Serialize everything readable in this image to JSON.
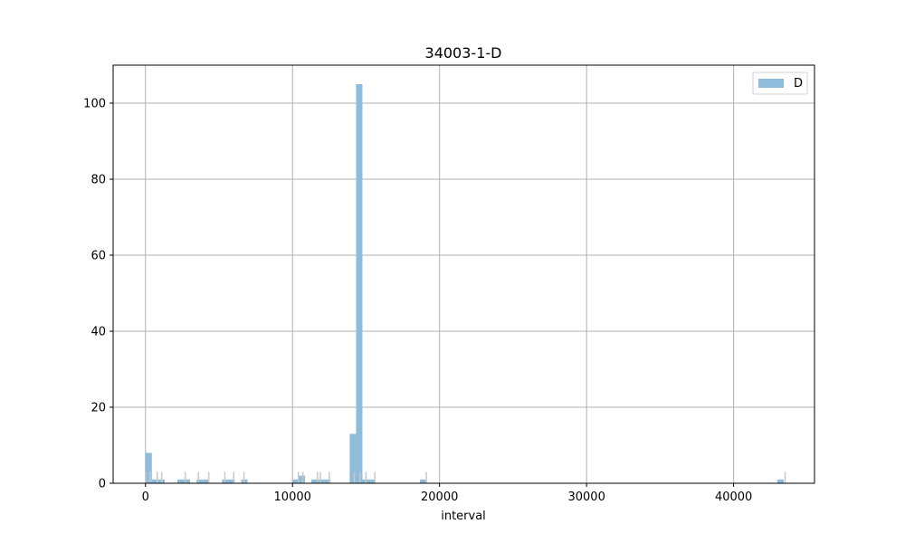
{
  "chart_data": {
    "type": "bar",
    "title": "34003-1-D",
    "xlabel": "interval",
    "ylabel": "",
    "xlim": [
      -2200,
      45500
    ],
    "ylim": [
      0,
      110
    ],
    "xticks": [
      0,
      10000,
      20000,
      30000,
      40000
    ],
    "yticks": [
      0,
      20,
      40,
      60,
      80,
      100
    ],
    "grid": true,
    "legend": {
      "position": "top-right",
      "entries": [
        "D"
      ]
    },
    "series": [
      {
        "name": "D",
        "color": "#8fbcdb",
        "bin_width": 434,
        "bars": [
          {
            "x": 0,
            "value": 8
          },
          {
            "x": 434,
            "value": 1
          },
          {
            "x": 868,
            "value": 1
          },
          {
            "x": 2170,
            "value": 1
          },
          {
            "x": 2604,
            "value": 1
          },
          {
            "x": 3472,
            "value": 1
          },
          {
            "x": 3906,
            "value": 1
          },
          {
            "x": 5208,
            "value": 1
          },
          {
            "x": 5642,
            "value": 1
          },
          {
            "x": 6510,
            "value": 1
          },
          {
            "x": 9982,
            "value": 1
          },
          {
            "x": 10416,
            "value": 2
          },
          {
            "x": 11284,
            "value": 1
          },
          {
            "x": 11718,
            "value": 1
          },
          {
            "x": 12152,
            "value": 1
          },
          {
            "x": 13888,
            "value": 13
          },
          {
            "x": 14322,
            "value": 105
          },
          {
            "x": 14756,
            "value": 1
          },
          {
            "x": 15190,
            "value": 1
          },
          {
            "x": 18662,
            "value": 1
          },
          {
            "x": 42966,
            "value": 1
          }
        ]
      }
    ],
    "overlay_ticks": {
      "color": "#c8c8c8",
      "values": [
        0,
        300,
        800,
        1100,
        2700,
        3600,
        4300,
        5400,
        6000,
        6700,
        10400,
        10700,
        11700,
        11900,
        12500,
        14200,
        14600,
        15000,
        15600,
        19100,
        43500
      ]
    }
  }
}
